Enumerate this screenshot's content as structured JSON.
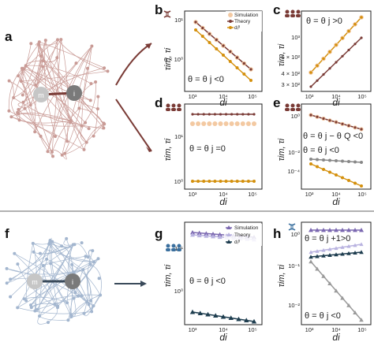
{
  "panels": {
    "a": {
      "letter": "a",
      "node_m": "m",
      "node_i": "i"
    },
    "b": {
      "letter": "b",
      "ylabel": "τim, τi",
      "xlabel": "di",
      "annotation": "θ = θ j <0",
      "ytick_top": "10¹",
      "ytick_mid": "6 × 10⁰",
      "xticks": [
        "10³",
        "10⁴",
        "10⁵"
      ]
    },
    "c": {
      "letter": "c",
      "ylabel": "τim, τi",
      "xlabel": "di",
      "annotation": "θ = θ j >0",
      "ytick_top": "10³",
      "ytick_mid": "6 × 10²",
      "ytick_mid2": "4 × 10²",
      "ytick_bot": "3 × 10²",
      "xticks": [
        "10³",
        "10⁴",
        "10⁵"
      ]
    },
    "d": {
      "letter": "d",
      "ylabel": "τim, τi",
      "xlabel": "di",
      "annotation": "θ = θ j =0",
      "ytick_top": "10¹",
      "ytick_bot": "10⁰",
      "xticks": [
        "10³",
        "10⁴",
        "10⁵"
      ]
    },
    "e": {
      "letter": "e",
      "ylabel": "τim, τi",
      "xlabel": "di",
      "annotation1": "θ = θ j − θ Q <0",
      "annotation2": "θ = θ j <0",
      "ytick_top": "10⁰",
      "ytick_mid": "10⁻²",
      "ytick_bot": "10⁻⁴",
      "xticks": [
        "10³",
        "10⁴",
        "10⁵"
      ]
    },
    "f": {
      "letter": "f",
      "node_m": "m",
      "node_i": "i"
    },
    "g": {
      "letter": "g",
      "ylabel": "τim, τi",
      "xlabel": "di",
      "annotation": "θ = θ j <0",
      "ytick_top": "10¹",
      "ytick_bot": "10⁰",
      "xticks": [
        "10³",
        "10⁴",
        "10⁵"
      ]
    },
    "h": {
      "letter": "h",
      "ylabel": "τim, τi",
      "xlabel": "di",
      "annotation1": "θ = θ j +1>0",
      "annotation2": "θ = θ j <0",
      "ytick_top": "10⁰",
      "ytick_mid": "10⁻¹",
      "ytick_bot": "10⁻²",
      "xticks": [
        "10³",
        "10⁴",
        "10⁵"
      ]
    }
  },
  "legend_top": {
    "simulation": "Simulation",
    "theory": "Theory",
    "d_label": "dᵢᶿ"
  },
  "legend_bottom": {
    "simulation": "Simulation",
    "theory": "Theory",
    "d_label": "dᵢᶿ"
  },
  "colors": {
    "brown": "#7a3b36",
    "orange": "#d4900d",
    "peach": "#f3c9a2",
    "gray": "#888888",
    "purple": "#7b68b0",
    "lavender": "#b9b3e0",
    "navy": "#1e3d4f",
    "graph_brown": "#c99b96",
    "graph_blue": "#a3b6cf"
  },
  "chart_data": [
    {
      "type": "line",
      "panel": "b",
      "x": [
        1000,
        100000
      ],
      "series": [
        {
          "name": "Simulation",
          "values": [
            11,
            4.3
          ]
        },
        {
          "name": "Theory",
          "values": [
            11,
            4.3
          ]
        },
        {
          "name": "dᵢᶿ",
          "values": [
            9,
            3.6
          ]
        }
      ]
    },
    {
      "type": "line",
      "panel": "c",
      "x": [
        1000,
        100000
      ],
      "series": [
        {
          "values": [
            360,
            1200
          ]
        },
        {
          "values": [
            300,
            900
          ]
        }
      ]
    },
    {
      "type": "line",
      "panel": "d",
      "x": [
        1000,
        100000
      ],
      "series": [
        {
          "values": [
            40,
            40
          ]
        },
        {
          "values": [
            18,
            18
          ]
        },
        {
          "values": [
            1,
            1
          ]
        }
      ]
    },
    {
      "type": "line",
      "panel": "e",
      "x": [
        1000,
        100000
      ],
      "series": [
        {
          "values": [
            2,
            0.1
          ]
        },
        {
          "values": [
            0.01,
            0.008
          ]
        },
        {
          "values": [
            0.003,
            2e-05
          ]
        }
      ]
    },
    {
      "type": "line",
      "panel": "g",
      "x": [
        1000,
        100000
      ],
      "series": [
        {
          "name": "Simulation",
          "values": [
            35,
            25
          ]
        },
        {
          "name": "Theory",
          "values": [
            30,
            22
          ]
        },
        {
          "name": "dᵢᶿ",
          "values": [
            0.28,
            0.15
          ]
        }
      ]
    },
    {
      "type": "line",
      "panel": "h",
      "x": [
        1000,
        100000
      ],
      "series": [
        {
          "values": [
            2,
            2
          ]
        },
        {
          "values": [
            0.4,
            0.7
          ]
        },
        {
          "values": [
            0.3,
            0.5
          ]
        },
        {
          "values": [
            0.2,
            0.006
          ]
        }
      ]
    }
  ]
}
